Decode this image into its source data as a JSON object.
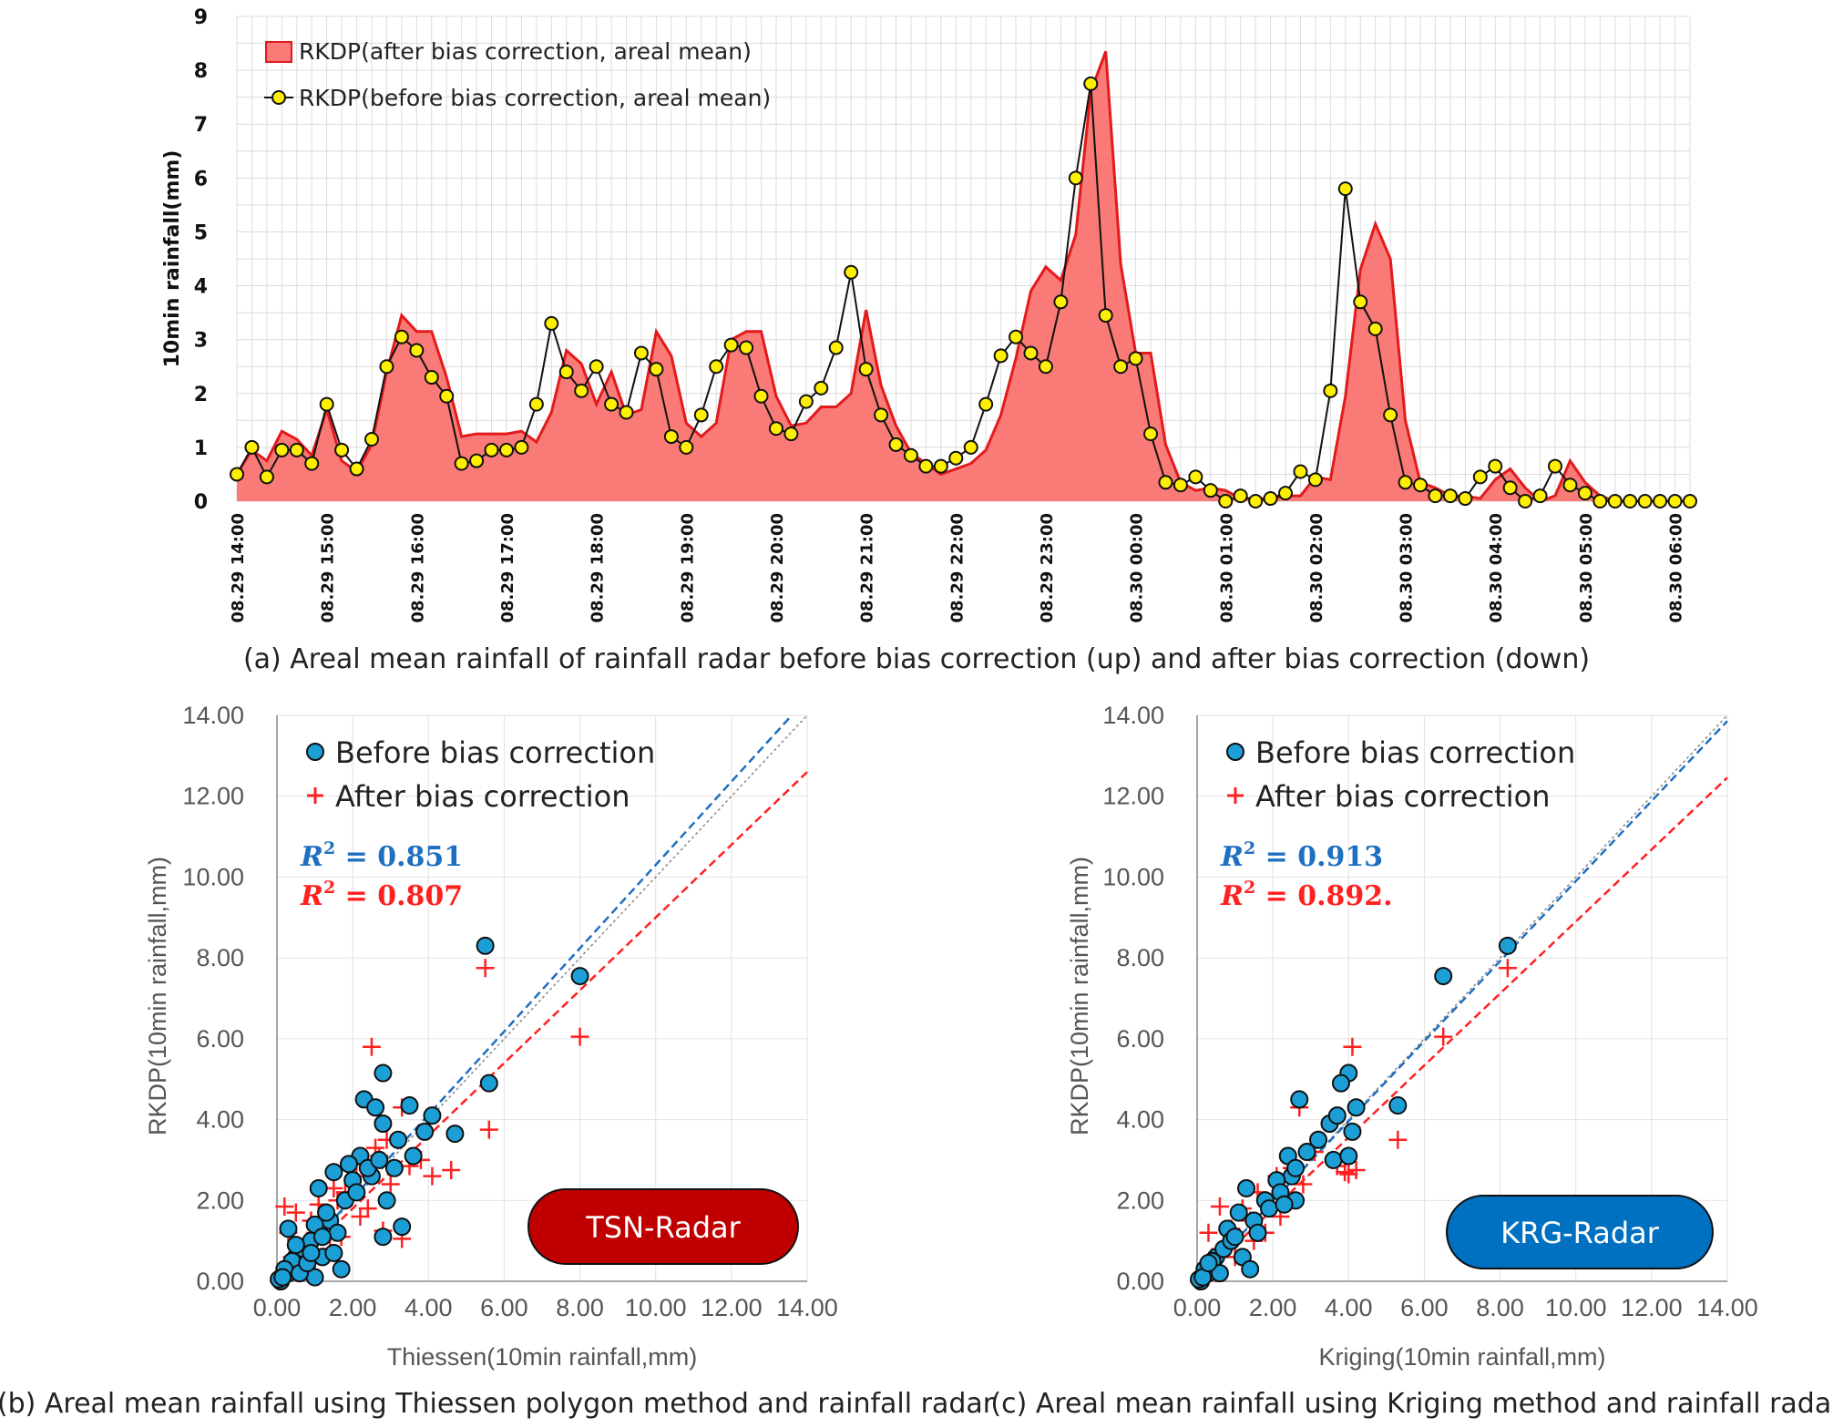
{
  "chart_data": [
    {
      "type": "area",
      "title": "(a) Areal mean rainfall of rainfall radar before bias correction (up) and after bias correction (down)",
      "ylabel": "10min rainfall(mm)",
      "ylim": [
        0,
        9
      ],
      "yticks": [
        "0",
        "1",
        "2",
        "3",
        "4",
        "5",
        "6",
        "7",
        "8",
        "9"
      ],
      "xticks": [
        "08.29 14:00",
        "08.29 15:00",
        "08.29 16:00",
        "08.29 17:00",
        "08.29 18:00",
        "08.29 19:00",
        "08.29 20:00",
        "08.29 21:00",
        "08.29 22:00",
        "08.29 23:00",
        "08.30 00:00",
        "08.30 01:00",
        "08.30 02:00",
        "08.30 03:00",
        "08.30 04:00",
        "08.30 05:00",
        "08.30 06:00"
      ],
      "grid": true,
      "legend_position": "top-left",
      "series": [
        {
          "name": "RKDP(after bias correction, areal mean)",
          "kind": "area",
          "color": "#e31a1c",
          "fill": "#f97a76",
          "values": [
            0.5,
            0.95,
            0.75,
            1.3,
            1.15,
            0.85,
            1.7,
            0.75,
            0.55,
            1.05,
            2.4,
            3.45,
            3.15,
            3.15,
            2.3,
            1.2,
            1.25,
            1.25,
            1.25,
            1.3,
            1.1,
            1.65,
            2.8,
            2.55,
            1.8,
            2.4,
            1.6,
            1.7,
            3.15,
            2.7,
            1.45,
            1.2,
            1.45,
            3.0,
            3.15,
            3.15,
            1.95,
            1.4,
            1.45,
            1.75,
            1.75,
            2.0,
            3.55,
            2.15,
            1.4,
            0.9,
            0.7,
            0.5,
            0.6,
            0.7,
            0.95,
            1.6,
            2.65,
            3.9,
            4.35,
            4.1,
            4.95,
            7.6,
            8.35,
            4.4,
            2.75,
            2.75,
            1.05,
            0.35,
            0.2,
            0.25,
            0.2,
            0.05,
            0.05,
            0.05,
            0.1,
            0.1,
            0.45,
            0.4,
            1.95,
            4.3,
            5.15,
            4.5,
            1.5,
            0.35,
            0.25,
            0.1,
            0.1,
            0.05,
            0.4,
            0.6,
            0.25,
            0.0,
            0.1,
            0.75,
            0.35,
            0.1,
            0.0,
            0.0,
            0.0,
            0.0,
            0.0,
            0.0
          ]
        },
        {
          "name": "RKDP(before bias correction, areal mean)",
          "kind": "line-marker",
          "color": "#111111",
          "marker": "#ffef00",
          "values": [
            0.5,
            1.0,
            0.45,
            0.95,
            0.95,
            0.7,
            1.8,
            0.95,
            0.6,
            1.15,
            2.5,
            3.05,
            2.8,
            2.3,
            1.95,
            0.7,
            0.75,
            0.95,
            0.95,
            1.0,
            1.8,
            3.3,
            2.4,
            2.05,
            2.5,
            1.8,
            1.65,
            2.75,
            2.45,
            1.2,
            1.0,
            1.6,
            2.5,
            2.9,
            2.85,
            1.95,
            1.35,
            1.25,
            1.85,
            2.1,
            2.85,
            4.25,
            2.45,
            1.6,
            1.05,
            0.85,
            0.65,
            0.65,
            0.8,
            1.0,
            1.8,
            2.7,
            3.05,
            2.75,
            2.5,
            3.7,
            6.0,
            7.75,
            3.45,
            2.5,
            2.65,
            1.25,
            0.35,
            0.3,
            0.45,
            0.2,
            0.0,
            0.1,
            0.0,
            0.05,
            0.15,
            0.55,
            0.4,
            2.05,
            5.8,
            3.7,
            3.2,
            1.6,
            0.35,
            0.3,
            0.1,
            0.1,
            0.05,
            0.45,
            0.65,
            0.25,
            0.0,
            0.1,
            0.65,
            0.3,
            0.15,
            0.0,
            0.0,
            0.0,
            0.0,
            0.0,
            0.0,
            0.0
          ]
        }
      ]
    },
    {
      "type": "scatter",
      "title": "(b) Areal mean rainfall using Thiessen polygon method and rainfall radar",
      "xlabel": "Thiessen(10min rainfall,mm)",
      "ylabel": "RKDP(10min rainfall,mm)",
      "xlim": [
        0,
        14
      ],
      "ylim": [
        0,
        14
      ],
      "ticks": [
        "0.00",
        "2.00",
        "4.00",
        "6.00",
        "8.00",
        "10.00",
        "12.00",
        "14.00"
      ],
      "badge": "TSN-Radar",
      "badge_color": "#c00000",
      "legend_position": "top-left",
      "series": [
        {
          "name": "Before bias correction",
          "marker": "circle",
          "color": "#1c9fd6",
          "r2": "0.851",
          "trend_slope": 1.03,
          "points": [
            [
              5.5,
              8.3
            ],
            [
              8.0,
              7.55
            ],
            [
              5.6,
              4.9
            ],
            [
              2.8,
              5.15
            ],
            [
              3.5,
              4.35
            ],
            [
              4.1,
              4.1
            ],
            [
              2.3,
              4.5
            ],
            [
              2.6,
              4.3
            ],
            [
              2.8,
              3.9
            ],
            [
              3.9,
              3.7
            ],
            [
              4.7,
              3.65
            ],
            [
              3.2,
              3.5
            ],
            [
              3.6,
              3.1
            ],
            [
              2.2,
              3.1
            ],
            [
              1.5,
              2.7
            ],
            [
              2.5,
              2.6
            ],
            [
              2.0,
              2.5
            ],
            [
              1.1,
              2.3
            ],
            [
              2.9,
              2.0
            ],
            [
              3.3,
              1.35
            ],
            [
              2.8,
              1.1
            ],
            [
              1.4,
              1.5
            ],
            [
              0.3,
              1.3
            ],
            [
              1.2,
              0.6
            ],
            [
              1.5,
              0.7
            ],
            [
              1.7,
              0.3
            ],
            [
              1.0,
              0.1
            ],
            [
              0.5,
              0.6
            ],
            [
              0.3,
              0.2
            ],
            [
              0.1,
              0.0
            ],
            [
              0.05,
              0.05
            ],
            [
              0.7,
              0.8
            ],
            [
              0.9,
              1.0
            ],
            [
              1.3,
              1.7
            ],
            [
              1.8,
              2.0
            ],
            [
              2.1,
              2.2
            ],
            [
              2.4,
              2.8
            ],
            [
              1.6,
              1.2
            ],
            [
              0.4,
              0.5
            ],
            [
              0.2,
              0.3
            ],
            [
              0.6,
              0.2
            ],
            [
              0.8,
              0.45
            ],
            [
              1.0,
              1.4
            ],
            [
              1.9,
              2.9
            ],
            [
              2.7,
              3.0
            ],
            [
              3.1,
              2.8
            ],
            [
              1.2,
              1.1
            ],
            [
              0.9,
              0.7
            ],
            [
              0.5,
              0.9
            ],
            [
              0.15,
              0.1
            ]
          ]
        },
        {
          "name": "After bias correction",
          "marker": "plus",
          "color": "#ff2020",
          "r2": "0.807",
          "trend_slope": 0.9,
          "points": [
            [
              5.5,
              7.75
            ],
            [
              8.0,
              6.05
            ],
            [
              5.6,
              3.75
            ],
            [
              2.5,
              5.8
            ],
            [
              3.3,
              4.3
            ],
            [
              4.1,
              2.6
            ],
            [
              4.6,
              2.75
            ],
            [
              3.5,
              2.85
            ],
            [
              3.3,
              1.05
            ],
            [
              2.8,
              1.25
            ],
            [
              0.2,
              1.85
            ],
            [
              0.5,
              1.7
            ],
            [
              1.1,
              1.9
            ],
            [
              1.5,
              2.3
            ],
            [
              2.1,
              2.6
            ],
            [
              2.6,
              3.3
            ],
            [
              2.9,
              3.5
            ],
            [
              1.8,
              2.2
            ],
            [
              1.2,
              1.4
            ],
            [
              0.8,
              1.0
            ],
            [
              0.4,
              0.6
            ],
            [
              0.2,
              0.3
            ],
            [
              0.1,
              0.1
            ],
            [
              0.6,
              0.2
            ],
            [
              1.0,
              0.5
            ],
            [
              1.4,
              0.8
            ],
            [
              1.7,
              1.1
            ],
            [
              2.2,
              1.6
            ],
            [
              2.4,
              1.8
            ],
            [
              3.0,
              2.4
            ],
            [
              3.8,
              3.0
            ],
            [
              0.3,
              1.2
            ],
            [
              0.9,
              1.5
            ],
            [
              1.6,
              2.0
            ],
            [
              2.0,
              2.9
            ],
            [
              2.7,
              3.1
            ],
            [
              0.05,
              0.0
            ],
            [
              0.5,
              0.4
            ]
          ]
        }
      ]
    },
    {
      "type": "scatter",
      "title": "(c) Areal mean rainfall using Kriging method and rainfall radar",
      "xlabel": "Kriging(10min rainfall,mm)",
      "ylabel": "RKDP(10min rainfall,mm)",
      "xlim": [
        0,
        14
      ],
      "ylim": [
        0,
        14
      ],
      "ticks": [
        "0.00",
        "2.00",
        "4.00",
        "6.00",
        "8.00",
        "10.00",
        "12.00",
        "14.00"
      ],
      "badge": "KRG-Radar",
      "badge_color": "#0070c0",
      "legend_position": "top-left",
      "series": [
        {
          "name": "Before bias correction",
          "marker": "circle",
          "color": "#1c9fd6",
          "r2": "0.913",
          "trend_slope": 0.99,
          "points": [
            [
              8.2,
              8.3
            ],
            [
              6.5,
              7.55
            ],
            [
              4.0,
              5.15
            ],
            [
              3.8,
              4.9
            ],
            [
              5.3,
              4.35
            ],
            [
              4.2,
              4.3
            ],
            [
              2.7,
              4.5
            ],
            [
              3.5,
              3.9
            ],
            [
              3.7,
              4.1
            ],
            [
              4.1,
              3.7
            ],
            [
              3.2,
              3.5
            ],
            [
              2.4,
              3.1
            ],
            [
              2.9,
              3.2
            ],
            [
              3.6,
              3.0
            ],
            [
              4.0,
              3.1
            ],
            [
              2.5,
              2.6
            ],
            [
              2.1,
              2.5
            ],
            [
              1.3,
              2.3
            ],
            [
              1.8,
              2.0
            ],
            [
              2.6,
              2.0
            ],
            [
              1.1,
              1.7
            ],
            [
              1.5,
              1.5
            ],
            [
              0.8,
              1.3
            ],
            [
              1.2,
              0.6
            ],
            [
              0.5,
              0.6
            ],
            [
              0.3,
              0.2
            ],
            [
              0.1,
              0.0
            ],
            [
              0.05,
              0.05
            ],
            [
              0.7,
              0.8
            ],
            [
              0.9,
              1.0
            ],
            [
              1.6,
              1.2
            ],
            [
              2.2,
              2.2
            ],
            [
              2.6,
              2.8
            ],
            [
              1.4,
              0.3
            ],
            [
              0.4,
              0.5
            ],
            [
              0.2,
              0.3
            ],
            [
              0.6,
              0.2
            ],
            [
              1.0,
              1.1
            ],
            [
              1.9,
              1.8
            ],
            [
              2.3,
              1.9
            ],
            [
              0.15,
              0.1
            ],
            [
              0.3,
              0.45
            ]
          ]
        },
        {
          "name": "After bias correction",
          "marker": "plus",
          "color": "#ff2020",
          "r2": "0.892.",
          "trend_slope": 0.89,
          "points": [
            [
              8.2,
              7.75
            ],
            [
              6.5,
              6.05
            ],
            [
              4.1,
              5.8
            ],
            [
              5.3,
              3.5
            ],
            [
              2.7,
              4.3
            ],
            [
              3.7,
              2.85
            ],
            [
              4.0,
              2.65
            ],
            [
              4.2,
              2.75
            ],
            [
              3.9,
              2.7
            ],
            [
              3.1,
              3.2
            ],
            [
              2.5,
              2.8
            ],
            [
              2.8,
              2.4
            ],
            [
              2.1,
              2.6
            ],
            [
              1.6,
              2.2
            ],
            [
              1.2,
              1.8
            ],
            [
              0.6,
              1.85
            ],
            [
              0.9,
              1.3
            ],
            [
              1.4,
              1.5
            ],
            [
              0.8,
              0.9
            ],
            [
              0.4,
              0.6
            ],
            [
              0.2,
              0.3
            ],
            [
              0.1,
              0.1
            ],
            [
              0.5,
              0.2
            ],
            [
              1.0,
              0.6
            ],
            [
              1.8,
              1.2
            ],
            [
              2.2,
              1.6
            ],
            [
              2.6,
              2.0
            ],
            [
              0.3,
              1.2
            ],
            [
              1.5,
              1.0
            ],
            [
              0.05,
              0.0
            ]
          ]
        }
      ]
    }
  ],
  "legend_a": {
    "after_label": "RKDP(after bias correction, areal mean)",
    "before_label": "RKDP(before bias correction, areal mean)"
  },
  "legend_scatter": {
    "before_label": "Before bias correction",
    "after_label": "After bias correction",
    "r2_prefix": "R",
    "r2_exp": "2",
    "r2_eq": " = "
  }
}
